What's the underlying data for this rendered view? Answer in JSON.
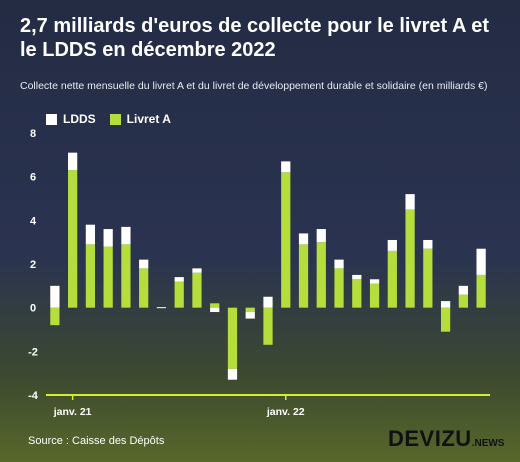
{
  "title": "2,7 milliards d'euros de collecte pour le livret A et le LDDS en décembre 2022",
  "subtitle": "Collecte nette mensuelle du livret A et du livret de développement durable et solidaire (en milliards €)",
  "source": "Source : Caisse des Dépôts",
  "brand": {
    "name": "DEVIZU",
    "suffix": ".NEWS"
  },
  "colors": {
    "ldds": "#ffffff",
    "livret_a": "#b5dd3b",
    "axis_line": "#d6ef2a"
  },
  "chart_data": {
    "type": "bar",
    "stacked": true,
    "ylim": [
      -4,
      8
    ],
    "yticks": [
      -4,
      -2,
      0,
      2,
      4,
      6,
      8
    ],
    "xtick_labels": [
      {
        "index": 1,
        "label": "janv. 21"
      },
      {
        "index": 13,
        "label": "janv. 22"
      }
    ],
    "legend": [
      {
        "key": "ldds",
        "label": "LDDS"
      },
      {
        "key": "livret_a",
        "label": "Livret A"
      }
    ],
    "series": [
      {
        "name": "LDDS",
        "values": [
          1.0,
          0.8,
          0.9,
          0.8,
          0.8,
          0.4,
          0.0,
          0.2,
          0.2,
          -0.2,
          -0.5,
          -0.3,
          0.5,
          0.5,
          0.5,
          0.6,
          0.4,
          0.2,
          0.2,
          0.5,
          0.7,
          0.4,
          0.3,
          0.4,
          1.2
        ]
      },
      {
        "name": "Livret A",
        "values": [
          -0.8,
          6.3,
          2.9,
          2.8,
          2.9,
          1.8,
          0.0,
          1.2,
          1.6,
          0.2,
          -2.8,
          -0.2,
          -1.7,
          6.2,
          2.9,
          3.0,
          1.8,
          1.3,
          1.1,
          2.6,
          4.5,
          2.7,
          -1.1,
          0.6,
          1.5
        ]
      }
    ]
  }
}
